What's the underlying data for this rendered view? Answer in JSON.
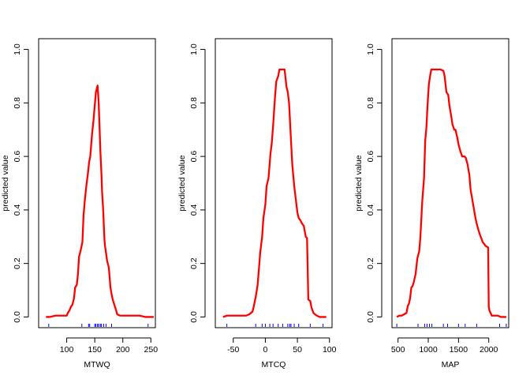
{
  "colors": {
    "curve": "#ff0000",
    "rug": "#0000ff",
    "axis": "#000000"
  },
  "chart_data": [
    {
      "type": "line",
      "xlabel": "MTWQ",
      "ylabel": "predicted value",
      "xlim": [
        50,
        258
      ],
      "ylim": [
        -0.04,
        1.04
      ],
      "xticks": [
        100,
        150,
        200,
        250
      ],
      "yticks": [
        0.0,
        0.2,
        0.4,
        0.6,
        0.8,
        1.0
      ],
      "ytick_labels": [
        "0.0",
        "0.2",
        "0.4",
        "0.6",
        "0.8",
        "1.0"
      ],
      "series": [
        {
          "name": "MTWQ",
          "x": [
            63,
            70,
            80,
            90,
            100,
            102,
            105,
            108,
            110,
            113,
            115,
            118,
            120,
            122,
            125,
            128,
            130,
            132,
            135,
            138,
            140,
            142,
            145,
            148,
            150,
            152,
            155,
            157,
            158,
            160,
            162,
            163,
            165,
            167,
            168,
            170,
            172,
            175,
            178,
            180,
            182,
            185,
            188,
            190,
            195,
            200,
            210,
            220,
            230,
            240,
            245,
            255
          ],
          "y": [
            0.0,
            0.0,
            0.005,
            0.005,
            0.005,
            0.015,
            0.025,
            0.04,
            0.045,
            0.07,
            0.11,
            0.12,
            0.16,
            0.225,
            0.25,
            0.28,
            0.38,
            0.43,
            0.49,
            0.54,
            0.58,
            0.6,
            0.68,
            0.74,
            0.79,
            0.84,
            0.865,
            0.8,
            0.74,
            0.62,
            0.53,
            0.47,
            0.4,
            0.3,
            0.27,
            0.24,
            0.21,
            0.185,
            0.11,
            0.085,
            0.065,
            0.045,
            0.025,
            0.01,
            0.005,
            0.005,
            0.005,
            0.005,
            0.005,
            0.0,
            0.0,
            0.0
          ]
        }
      ],
      "rug": [
        68,
        127,
        139,
        141,
        150,
        152,
        155,
        157,
        160,
        162,
        166,
        170,
        180,
        245
      ]
    },
    {
      "type": "line",
      "xlabel": "MTCQ",
      "ylabel": "predicted value",
      "xlim": [
        -78,
        104
      ],
      "ylim": [
        -0.04,
        1.04
      ],
      "xticks": [
        -50,
        0,
        50,
        100
      ],
      "yticks": [
        0.0,
        0.2,
        0.4,
        0.6,
        0.8,
        1.0
      ],
      "ytick_labels": [
        "0.0",
        "0.2",
        "0.4",
        "0.6",
        "0.8",
        "1.0"
      ],
      "series": [
        {
          "name": "MTCQ",
          "x": [
            -66,
            -60,
            -50,
            -40,
            -30,
            -25,
            -20,
            -18,
            -15,
            -12,
            -10,
            -8,
            -5,
            -3,
            0,
            2,
            5,
            8,
            10,
            12,
            15,
            17,
            20,
            22,
            25,
            30,
            33,
            35,
            37,
            40,
            42,
            45,
            47,
            50,
            52,
            55,
            57,
            60,
            63,
            65,
            67,
            70,
            72,
            75,
            80,
            85,
            90,
            95
          ],
          "y": [
            0.0,
            0.005,
            0.005,
            0.005,
            0.005,
            0.01,
            0.02,
            0.04,
            0.075,
            0.12,
            0.18,
            0.24,
            0.3,
            0.37,
            0.42,
            0.49,
            0.52,
            0.61,
            0.65,
            0.71,
            0.82,
            0.88,
            0.9,
            0.925,
            0.925,
            0.925,
            0.86,
            0.84,
            0.8,
            0.66,
            0.57,
            0.49,
            0.45,
            0.39,
            0.37,
            0.36,
            0.35,
            0.34,
            0.3,
            0.295,
            0.065,
            0.06,
            0.035,
            0.015,
            0.005,
            0.0,
            0.0,
            0.0
          ]
        }
      ],
      "rug": [
        -60,
        -15,
        -5,
        0,
        7,
        12,
        20,
        27,
        35,
        38,
        40,
        45,
        52,
        70,
        90
      ]
    },
    {
      "type": "line",
      "xlabel": "MAP",
      "ylabel": "predicted value",
      "xlim": [
        400,
        2330
      ],
      "ylim": [
        -0.04,
        1.04
      ],
      "xticks": [
        500,
        1000,
        1500,
        2000
      ],
      "yticks": [
        0.0,
        0.2,
        0.4,
        0.6,
        0.8,
        1.0
      ],
      "ytick_labels": [
        "0.0",
        "0.2",
        "0.4",
        "0.6",
        "0.8",
        "1.0"
      ],
      "series": [
        {
          "name": "MAP",
          "x": [
            480,
            520,
            560,
            600,
            640,
            660,
            680,
            700,
            720,
            740,
            760,
            790,
            820,
            850,
            870,
            900,
            930,
            950,
            970,
            990,
            1010,
            1030,
            1050,
            1080,
            1100,
            1150,
            1200,
            1250,
            1270,
            1300,
            1330,
            1350,
            1380,
            1400,
            1430,
            1450,
            1480,
            1500,
            1530,
            1560,
            1600,
            1620,
            1650,
            1680,
            1700,
            1720,
            1750,
            1780,
            1810,
            1850,
            1900,
            1950,
            1990,
            2000,
            2010,
            2030,
            2050,
            2100,
            2150,
            2200,
            2250,
            2290
          ],
          "y": [
            0.0,
            0.005,
            0.005,
            0.01,
            0.015,
            0.04,
            0.05,
            0.07,
            0.11,
            0.115,
            0.13,
            0.16,
            0.22,
            0.245,
            0.3,
            0.43,
            0.52,
            0.66,
            0.71,
            0.8,
            0.87,
            0.9,
            0.925,
            0.925,
            0.925,
            0.925,
            0.925,
            0.92,
            0.9,
            0.84,
            0.83,
            0.79,
            0.75,
            0.72,
            0.7,
            0.7,
            0.67,
            0.645,
            0.62,
            0.6,
            0.6,
            0.595,
            0.57,
            0.53,
            0.475,
            0.45,
            0.41,
            0.37,
            0.34,
            0.31,
            0.28,
            0.265,
            0.26,
            0.04,
            0.025,
            0.015,
            0.005,
            0.005,
            0.005,
            0.0,
            0.0,
            0.0
          ]
        }
      ],
      "rug": [
        480,
        830,
        940,
        980,
        1020,
        1060,
        1250,
        1320,
        1500,
        1610,
        1800,
        2180,
        2290
      ]
    }
  ]
}
